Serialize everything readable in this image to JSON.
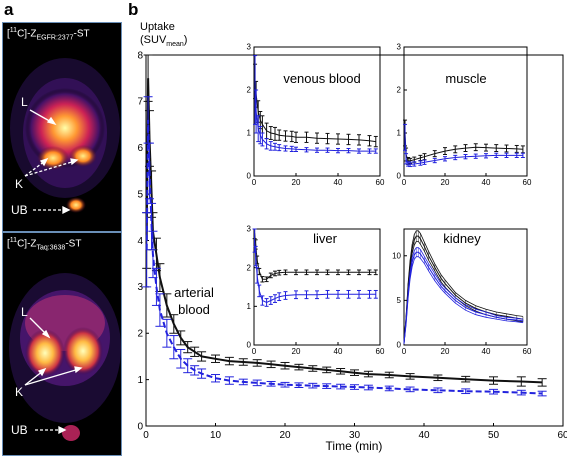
{
  "panel_a": {
    "letter": "a",
    "top_image": {
      "tracer_prefix": "[",
      "tracer_sup": "11",
      "tracer_mid": "C]-Z",
      "tracer_sub": "EGFR:2377",
      "tracer_suffix": "-ST",
      "labels": {
        "liver": "L",
        "kidney": "K",
        "bladder": "UB"
      }
    },
    "bottom_image": {
      "tracer_prefix": "[",
      "tracer_sup": "11",
      "tracer_mid": "C]-Z",
      "tracer_sub": "Taq:3638",
      "tracer_suffix": "-ST",
      "labels": {
        "liver": "L",
        "kidney": "K",
        "bladder": "UB"
      }
    }
  },
  "panel_b": {
    "letter": "b",
    "ylabel_line1": "Uptake",
    "ylabel_line2": "(SUV",
    "ylabel_sub": "mean",
    "ylabel_close": ")",
    "xlabel": "Time (min)",
    "annotation_line1": "arterial",
    "annotation_line2": "blood"
  },
  "colors": {
    "egfr": "#111111",
    "taq": "#2222dd",
    "pet_border": "#6a8fb8"
  },
  "chart_data": [
    {
      "type": "line",
      "panel": "main",
      "xlabel": "Time (min)",
      "ylabel": "Uptake (SUVmean)",
      "annotation": "arterial blood",
      "xlim": [
        0,
        60
      ],
      "ylim": [
        0,
        8
      ],
      "xticks": [
        0,
        10,
        20,
        30,
        40,
        50,
        60
      ],
      "yticks": [
        0,
        1,
        2,
        3,
        4,
        5,
        6,
        7,
        8
      ],
      "series": [
        {
          "x": [
            0.1,
            0.3,
            0.5,
            0.8,
            1,
            1.5,
            2,
            3,
            4,
            5,
            6,
            7,
            8,
            10,
            12,
            14,
            16,
            18,
            20,
            22,
            24,
            26,
            28,
            30,
            32,
            35,
            38,
            42,
            46,
            50,
            54,
            57
          ],
          "y": [
            4.0,
            7.5,
            6.2,
            5.0,
            4.2,
            3.7,
            3.2,
            2.6,
            2.2,
            1.9,
            1.7,
            1.6,
            1.5,
            1.45,
            1.4,
            1.38,
            1.36,
            1.33,
            1.3,
            1.27,
            1.24,
            1.21,
            1.18,
            1.15,
            1.12,
            1.1,
            1.07,
            1.04,
            1.01,
            0.98,
            0.96,
            0.94
          ],
          "err": [
            0.6,
            0.5,
            0.6,
            0.5,
            0.4,
            0.35,
            0.3,
            0.25,
            0.2,
            0.15,
            0.12,
            0.1,
            0.1,
            0.08,
            0.08,
            0.07,
            0.07,
            0.07,
            0.07,
            0.06,
            0.06,
            0.06,
            0.06,
            0.06,
            0.06,
            0.06,
            0.06,
            0.06,
            0.06,
            0.08,
            0.1,
            0.08
          ]
        },
        {
          "x": [
            0.1,
            0.3,
            0.5,
            0.8,
            1,
            1.5,
            2,
            3,
            4,
            5,
            6,
            7,
            8,
            10,
            12,
            14,
            16,
            18,
            20,
            22,
            24,
            26,
            28,
            30,
            32,
            35,
            38,
            42,
            46,
            50,
            54,
            57
          ],
          "y": [
            3.8,
            6.6,
            5.5,
            4.3,
            3.7,
            3.0,
            2.5,
            2.0,
            1.7,
            1.45,
            1.3,
            1.2,
            1.13,
            1.03,
            0.98,
            0.95,
            0.93,
            0.91,
            0.89,
            0.88,
            0.87,
            0.86,
            0.85,
            0.84,
            0.83,
            0.81,
            0.79,
            0.77,
            0.75,
            0.74,
            0.72,
            0.7
          ],
          "err": [
            0.8,
            0.5,
            0.6,
            0.5,
            0.5,
            0.4,
            0.35,
            0.3,
            0.25,
            0.2,
            0.15,
            0.1,
            0.1,
            0.08,
            0.08,
            0.06,
            0.06,
            0.05,
            0.05,
            0.05,
            0.05,
            0.05,
            0.05,
            0.05,
            0.05,
            0.05,
            0.05,
            0.05,
            0.05,
            0.05,
            0.05,
            0.05
          ]
        }
      ]
    },
    {
      "type": "line",
      "panel": "inset",
      "title": "venous blood",
      "xlim": [
        0,
        60
      ],
      "ylim": [
        0,
        3
      ],
      "xticks": [
        0,
        20,
        40,
        60
      ],
      "yticks": [
        0,
        1,
        2,
        3
      ],
      "series": [
        {
          "x": [
            0.5,
            1,
            2,
            3,
            4,
            6,
            8,
            10,
            12,
            15,
            18,
            20,
            25,
            30,
            35,
            40,
            45,
            50,
            55,
            58
          ],
          "y": [
            2.2,
            1.9,
            1.5,
            1.3,
            1.2,
            1.05,
            1.0,
            0.98,
            0.95,
            0.93,
            0.92,
            0.9,
            0.9,
            0.88,
            0.87,
            0.86,
            0.85,
            0.84,
            0.82,
            0.8
          ],
          "err": [
            0.4,
            0.3,
            0.25,
            0.2,
            0.2,
            0.18,
            0.15,
            0.15,
            0.12,
            0.12,
            0.12,
            0.12,
            0.12,
            0.12,
            0.12,
            0.12,
            0.12,
            0.12,
            0.12,
            0.12
          ]
        },
        {
          "x": [
            0.5,
            1,
            2,
            3,
            4,
            6,
            8,
            10,
            12,
            15,
            18,
            20,
            25,
            30,
            35,
            40,
            45,
            50,
            55,
            58
          ],
          "y": [
            2.0,
            1.5,
            1.1,
            0.95,
            0.85,
            0.75,
            0.7,
            0.68,
            0.66,
            0.64,
            0.63,
            0.62,
            0.61,
            0.6,
            0.6,
            0.59,
            0.59,
            0.58,
            0.58,
            0.58
          ],
          "err": [
            0.8,
            0.5,
            0.3,
            0.2,
            0.15,
            0.12,
            0.1,
            0.08,
            0.07,
            0.06,
            0.06,
            0.05,
            0.05,
            0.05,
            0.05,
            0.05,
            0.05,
            0.05,
            0.05,
            0.05
          ]
        }
      ]
    },
    {
      "type": "line",
      "panel": "inset",
      "title": "muscle",
      "xlim": [
        0,
        60
      ],
      "ylim": [
        0,
        3
      ],
      "xticks": [
        0,
        20,
        40,
        60
      ],
      "yticks": [
        0,
        1,
        2,
        3
      ],
      "series": [
        {
          "x": [
            0.5,
            1,
            2,
            3,
            5,
            8,
            10,
            15,
            20,
            25,
            30,
            35,
            40,
            45,
            50,
            55,
            58
          ],
          "y": [
            1.0,
            0.5,
            0.35,
            0.35,
            0.38,
            0.42,
            0.45,
            0.52,
            0.58,
            0.62,
            0.65,
            0.67,
            0.66,
            0.65,
            0.64,
            0.63,
            0.62
          ],
          "err": [
            0.3,
            0.15,
            0.08,
            0.06,
            0.06,
            0.06,
            0.07,
            0.07,
            0.08,
            0.08,
            0.08,
            0.08,
            0.08,
            0.08,
            0.08,
            0.08,
            0.08
          ]
        },
        {
          "x": [
            0.5,
            1,
            2,
            3,
            5,
            8,
            10,
            15,
            20,
            25,
            30,
            35,
            40,
            45,
            50,
            55,
            58
          ],
          "y": [
            0.9,
            0.4,
            0.28,
            0.27,
            0.28,
            0.3,
            0.32,
            0.36,
            0.4,
            0.43,
            0.45,
            0.46,
            0.47,
            0.48,
            0.48,
            0.48,
            0.48
          ],
          "err": [
            0.3,
            0.12,
            0.05,
            0.05,
            0.05,
            0.05,
            0.05,
            0.05,
            0.05,
            0.05,
            0.05,
            0.05,
            0.05,
            0.05,
            0.05,
            0.05,
            0.05
          ]
        }
      ]
    },
    {
      "type": "line",
      "panel": "inset",
      "title": "liver",
      "xlim": [
        0,
        60
      ],
      "ylim": [
        0,
        3
      ],
      "xticks": [
        0,
        20,
        40,
        60
      ],
      "yticks": [
        0,
        1,
        2,
        3
      ],
      "series": [
        {
          "x": [
            0.3,
            0.8,
            1.5,
            2.5,
            4,
            6,
            8,
            10,
            12,
            15,
            20,
            25,
            30,
            35,
            40,
            45,
            50,
            55,
            58
          ],
          "y": [
            2.9,
            2.6,
            2.2,
            1.9,
            1.7,
            1.7,
            1.8,
            1.85,
            1.87,
            1.88,
            1.88,
            1.88,
            1.88,
            1.88,
            1.88,
            1.88,
            1.88,
            1.88,
            1.88
          ],
          "err": [
            0.15,
            0.12,
            0.1,
            0.08,
            0.07,
            0.06,
            0.06,
            0.06,
            0.06,
            0.06,
            0.06,
            0.06,
            0.06,
            0.06,
            0.06,
            0.06,
            0.06,
            0.06,
            0.06
          ]
        },
        {
          "x": [
            0.3,
            0.8,
            1.5,
            2.5,
            4,
            6,
            8,
            10,
            12,
            15,
            20,
            25,
            30,
            35,
            40,
            45,
            50,
            55,
            58
          ],
          "y": [
            2.7,
            2.3,
            1.8,
            1.4,
            1.15,
            1.1,
            1.15,
            1.2,
            1.25,
            1.28,
            1.3,
            1.3,
            1.3,
            1.31,
            1.31,
            1.31,
            1.31,
            1.31,
            1.31
          ],
          "err": [
            0.3,
            0.25,
            0.2,
            0.15,
            0.12,
            0.1,
            0.1,
            0.1,
            0.1,
            0.1,
            0.1,
            0.1,
            0.1,
            0.1,
            0.1,
            0.1,
            0.1,
            0.1,
            0.1
          ]
        }
      ]
    },
    {
      "type": "line",
      "panel": "inset",
      "title": "kidney",
      "xlim": [
        0,
        60
      ],
      "ylim": [
        0,
        13
      ],
      "xticks": [
        0,
        20,
        40,
        60
      ],
      "yticks": [
        0,
        5,
        10
      ],
      "series": [
        {
          "x": [
            0,
            1,
            2,
            3,
            4,
            5,
            6,
            7,
            8,
            10,
            12,
            15,
            18,
            20,
            25,
            30,
            35,
            40,
            45,
            50,
            55,
            58
          ],
          "y": [
            0.2,
            3.0,
            6.5,
            9.0,
            10.8,
            11.8,
            12.2,
            12.2,
            11.9,
            11.0,
            10.0,
            8.7,
            7.5,
            6.9,
            5.6,
            4.7,
            4.1,
            3.7,
            3.4,
            3.2,
            3.0,
            2.9
          ],
          "err": [
            0.1,
            0.3,
            0.4,
            0.5,
            0.5,
            0.6,
            0.6,
            0.6,
            0.6,
            0.5,
            0.5,
            0.4,
            0.4,
            0.4,
            0.3,
            0.3,
            0.3,
            0.3,
            0.3,
            0.3,
            0.3,
            0.3
          ]
        },
        {
          "x": [
            0,
            1,
            2,
            3,
            4,
            5,
            6,
            7,
            8,
            10,
            12,
            15,
            18,
            20,
            25,
            30,
            35,
            40,
            45,
            50,
            55,
            58
          ],
          "y": [
            0.2,
            2.6,
            5.6,
            7.8,
            9.3,
            10.1,
            10.4,
            10.4,
            10.2,
            9.5,
            8.7,
            7.6,
            6.6,
            6.1,
            5.0,
            4.2,
            3.7,
            3.4,
            3.1,
            2.9,
            2.8,
            2.7
          ],
          "err": [
            0.1,
            0.3,
            0.4,
            0.4,
            0.5,
            0.5,
            0.5,
            0.5,
            0.5,
            0.4,
            0.4,
            0.4,
            0.3,
            0.3,
            0.3,
            0.3,
            0.3,
            0.3,
            0.2,
            0.2,
            0.2,
            0.2
          ]
        }
      ]
    }
  ]
}
